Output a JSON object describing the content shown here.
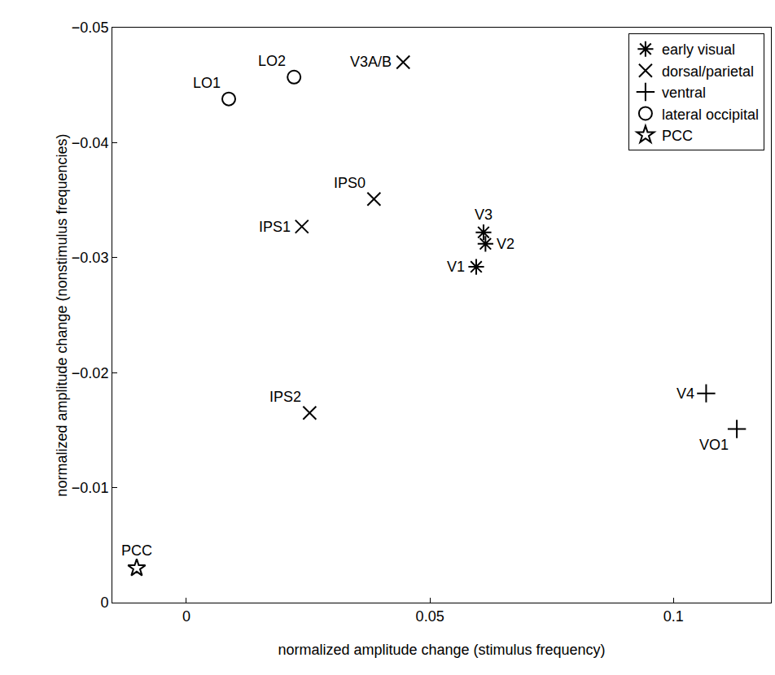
{
  "chart_data": {
    "type": "scatter",
    "x_label": "normalized amplitude change (stimulus frequency)",
    "y_label": "normalized amplitude change (nonstimulus frequencies)",
    "xlim": [
      -0.0152,
      0.12
    ],
    "ylim": [
      0,
      -0.05
    ],
    "xticks": [
      0,
      0.05,
      0.1
    ],
    "yticks": [
      0,
      {
        "value": -0.01,
        "label": "−0.01"
      },
      {
        "value": -0.02,
        "label": "−0.02"
      },
      {
        "value": -0.03,
        "label": "−0.03"
      },
      {
        "value": -0.04,
        "label": "−0.04"
      },
      {
        "value": -0.05,
        "label": "−0.05"
      }
    ],
    "grid": false,
    "legend": "top right",
    "series": [
      {
        "name": "early visual",
        "marker": "asterisk",
        "color": "#000000",
        "x": [
          0.0595,
          0.0614,
          0.061
        ],
        "values": [
          -0.0292,
          -0.0312,
          -0.0322
        ],
        "point_labels": [
          "V1",
          "V2",
          "V3"
        ]
      },
      {
        "name": "dorsal/parietal",
        "marker": "x",
        "color": "#000000",
        "x": [
          0.0445,
          0.0385,
          0.0237,
          0.0253
        ],
        "values": [
          -0.047,
          -0.0351,
          -0.0327,
          -0.0165
        ],
        "point_labels": [
          "V3A/B",
          "IPS0",
          "IPS1",
          "IPS2"
        ]
      },
      {
        "name": "ventral",
        "marker": "cross",
        "color": "#000000",
        "x": [
          0.1067,
          0.113
        ],
        "values": [
          -0.0182,
          -0.0151
        ],
        "point_labels": [
          "V4",
          "VO1"
        ]
      },
      {
        "name": "lateral occipital",
        "marker": "circle",
        "color": "#000000",
        "x": [
          0.0087,
          0.0221
        ],
        "values": [
          -0.0438,
          -0.0457
        ],
        "point_labels": [
          "LO1",
          "LO2"
        ]
      },
      {
        "name": "PCC",
        "marker": "star",
        "color": "#000000",
        "x": [
          -0.0102
        ],
        "values": [
          -0.003
        ],
        "point_labels": [
          "PCC"
        ]
      }
    ]
  }
}
